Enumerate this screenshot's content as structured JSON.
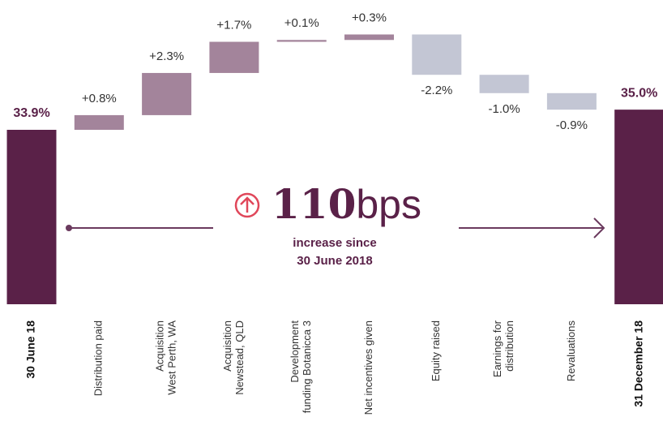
{
  "chart_data": {
    "type": "waterfall",
    "categories": [
      "30 June 18",
      "Distribution paid",
      "Acquisition\nWest Perth, WA",
      "Acquisition\nNewstead, QLD",
      "Development\nfunding Botanicca 3",
      "Net incentives given",
      "Equity raised",
      "Earnings for\ndistribution",
      "Revaluations",
      "31 December 18"
    ],
    "values": [
      33.9,
      0.8,
      2.3,
      1.7,
      0.1,
      0.3,
      -2.2,
      -1.0,
      -0.9,
      35.0
    ],
    "value_labels": [
      "33.9%",
      "+0.8%",
      "+2.3%",
      "+1.7%",
      "+0.1%",
      "+0.3%",
      "-2.2%",
      "-1.0%",
      "-0.9%",
      "35.0%"
    ],
    "total_color": "#5a2148",
    "increase_color": "#a3849b",
    "decrease_color": "#c3c6d4",
    "headline_number": "110",
    "headline_unit": "bps",
    "headline_caption": [
      "increase since",
      "30 June 2018"
    ]
  }
}
